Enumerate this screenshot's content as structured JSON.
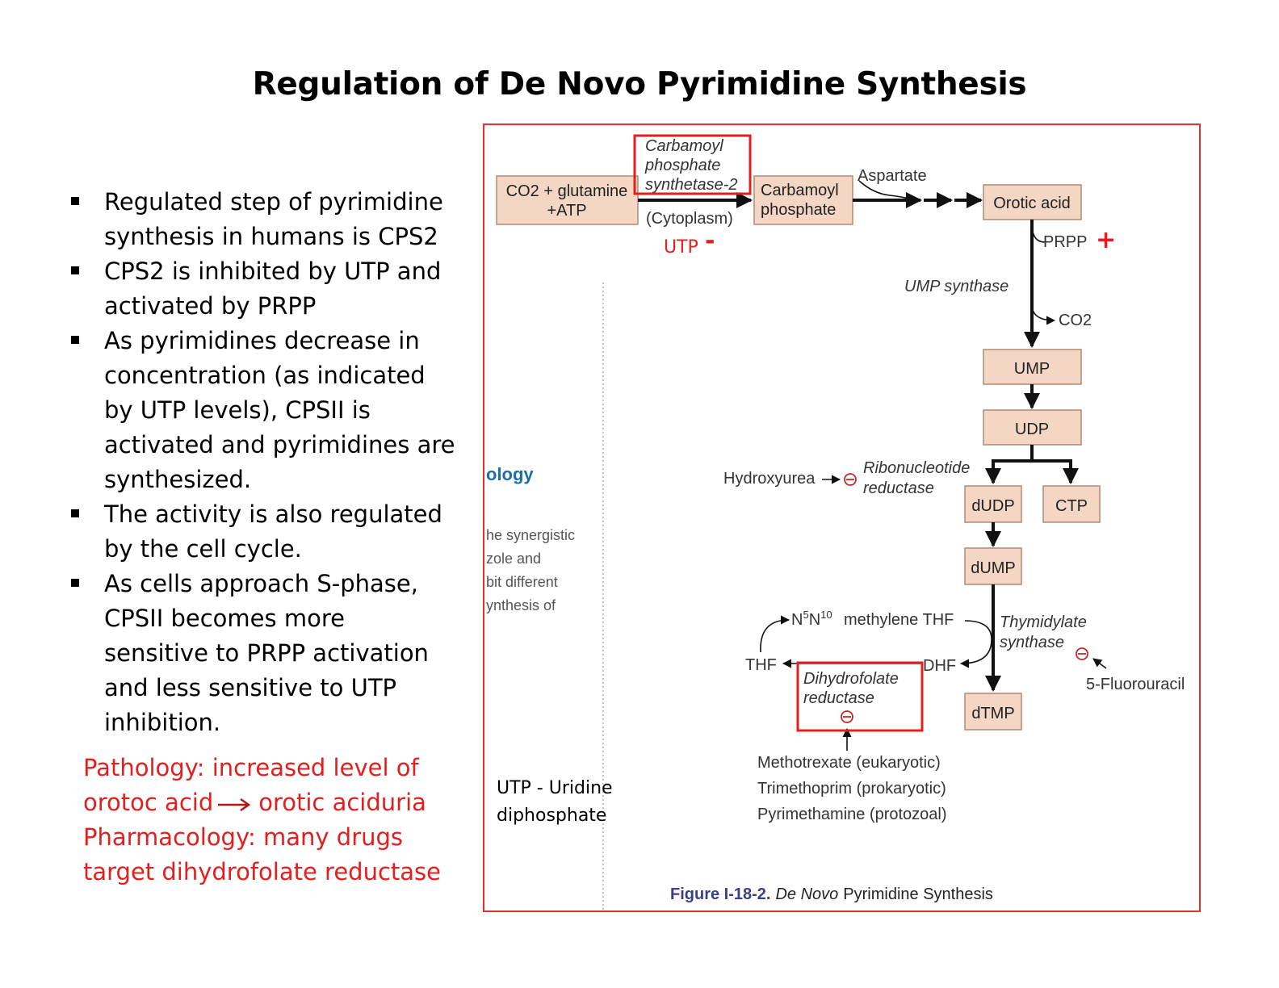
{
  "title": "Regulation of De Novo Pyrimidine Synthesis",
  "bullets": [
    "Regulated step of pyrimidine synthesis in humans is CPS2",
    "CPS2 is inhibited by UTP and activated by PRPP",
    "As pyrimidines decrease in concentration (as indicated by UTP levels), CPSII is activated and pyrimidines are synthesized.",
    "The activity is also regulated by the cell cycle.",
    "As cells approach S-phase, CPSII becomes more sensitive to PRPP activation and less sensitive to UTP inhibition."
  ],
  "notes": {
    "pathology_a": "Pathology: increased level of",
    "pathology_b": "orotoc acid",
    "pathology_c": "orotic aciduria",
    "pharmacology_a": "Pharmacology: many drugs",
    "pharmacology_b": "target dihydrofolate reductase"
  },
  "utp_note": {
    "line1": "UTP - Uridine",
    "line2": "diphosphate"
  },
  "diagram": {
    "nodes": {
      "co2_glutamine_l1": "CO2 + glutamine",
      "co2_glutamine_l2": "+ATP",
      "carbamoyl_phosphate_l1": "Carbamoyl",
      "carbamoyl_phosphate_l2": "phosphate",
      "orotic_acid": "Orotic acid",
      "ump": "UMP",
      "udp": "UDP",
      "dudp": "dUDP",
      "ctp": "CTP",
      "dump": "dUMP",
      "dtmp": "dTMP"
    },
    "enzymes": {
      "cps2_l1": "Carbamoyl",
      "cps2_l2": "phosphate",
      "cps2_l3": "synthetase-2",
      "ump_synthase": "UMP synthase",
      "ribonucleotide_reductase_l1": "Ribonucleotide",
      "ribonucleotide_reductase_l2": "reductase",
      "thymidylate_synthase_l1": "Thymidylate",
      "thymidylate_synthase_l2": "synthase",
      "dhfr_l1": "Dihydrofolate",
      "dhfr_l2": "reductase"
    },
    "labels": {
      "cytoplasm": "(Cytoplasm)",
      "aspartate": "Aspartate",
      "prpp": "PRPP",
      "co2": "CO2",
      "hydroxyurea": "Hydroxyurea",
      "methylene_thf": "methylene THF",
      "thf": "THF",
      "dhf": "DHF",
      "fluorouracil": "5-Fluorouracil",
      "methotrexate": "Methotrexate (eukaryotic)",
      "trimethoprim": "Trimethoprim (prokaryotic)",
      "pyrimethamine": "Pyrimethamine (protozoal)"
    },
    "regulation": {
      "utp": "UTP",
      "utp_sign": "-",
      "prpp_sign": "+"
    },
    "caption": {
      "prefix": "Figure I-18-2.",
      "italic": "De Novo",
      "rest": "Pyrimidine Synthesis"
    },
    "background_text": {
      "heading": "ology",
      "line1": "he synergistic",
      "line2": "zole and",
      "line3": "bit different",
      "line4": "ynthesis of"
    },
    "colors": {
      "box_fill": "#f3d6c4",
      "box_stroke": "#b08a74",
      "highlight": "#e31e1e",
      "caption_blue": "#3b3f86",
      "inhibit": "#c8282a"
    }
  }
}
